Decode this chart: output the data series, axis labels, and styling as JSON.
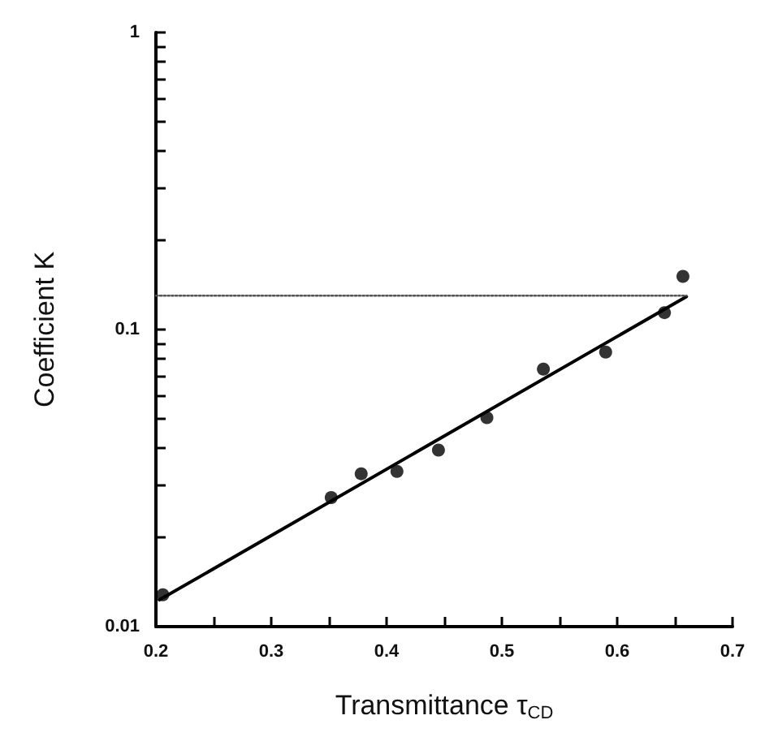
{
  "chart_data": {
    "type": "scatter",
    "xlabel": "Transmittance τ$_{CD}$",
    "ylabel": "Coefficient K",
    "log": "y",
    "grid": false,
    "marker": "circle",
    "xlim": [
      0.2,
      0.7
    ],
    "ylim": [
      0.01,
      1
    ],
    "xticks": [
      0.2,
      {
        "value": 0.25,
        "label": null
      },
      0.3,
      {
        "value": 0.35,
        "label": null
      },
      0.4,
      {
        "value": 0.45,
        "label": null
      },
      0.5,
      {
        "value": 0.55,
        "label": null
      },
      0.6,
      {
        "value": 0.65,
        "label": null
      },
      0.7
    ],
    "yticks": [
      0.01,
      {
        "value": 0.02,
        "label": null
      },
      {
        "value": 0.03,
        "label": null
      },
      {
        "value": 0.04,
        "label": null
      },
      {
        "value": 0.05,
        "label": null
      },
      {
        "value": 0.06,
        "label": null
      },
      {
        "value": 0.07,
        "label": null
      },
      {
        "value": 0.08,
        "label": null
      },
      {
        "value": 0.09,
        "label": null
      },
      0.1,
      {
        "value": 0.2,
        "label": null
      },
      {
        "value": 0.3,
        "label": null
      },
      {
        "value": 0.4,
        "label": null
      },
      {
        "value": 0.5,
        "label": null
      },
      {
        "value": 0.6,
        "label": null
      },
      {
        "value": 0.7,
        "label": null
      },
      {
        "value": 0.8,
        "label": null
      },
      {
        "value": 0.9,
        "label": null
      },
      1
    ],
    "series": [
      {
        "color": "#000000",
        "x": [
          0.206,
          0.352,
          0.378,
          0.409,
          0.445,
          0.487,
          0.536,
          0.59,
          0.641,
          0.657
        ],
        "values": [
          0.0128,
          0.0272,
          0.0327,
          0.0333,
          0.0393,
          0.0505,
          0.0736,
          0.084,
          0.114,
          0.151
        ]
      },
      {
        "type": "line",
        "color": "#000000",
        "marker": "none",
        "line_style": "solid",
        "x": [
          0.203,
          0.66
        ],
        "values": [
          0.0123,
          0.129
        ]
      },
      {
        "type": "line",
        "color": "#555555",
        "marker": "none",
        "line_style": "dotted",
        "x": [
          0.2,
          0.66
        ],
        "values": [
          0.13,
          0.13
        ]
      }
    ]
  }
}
